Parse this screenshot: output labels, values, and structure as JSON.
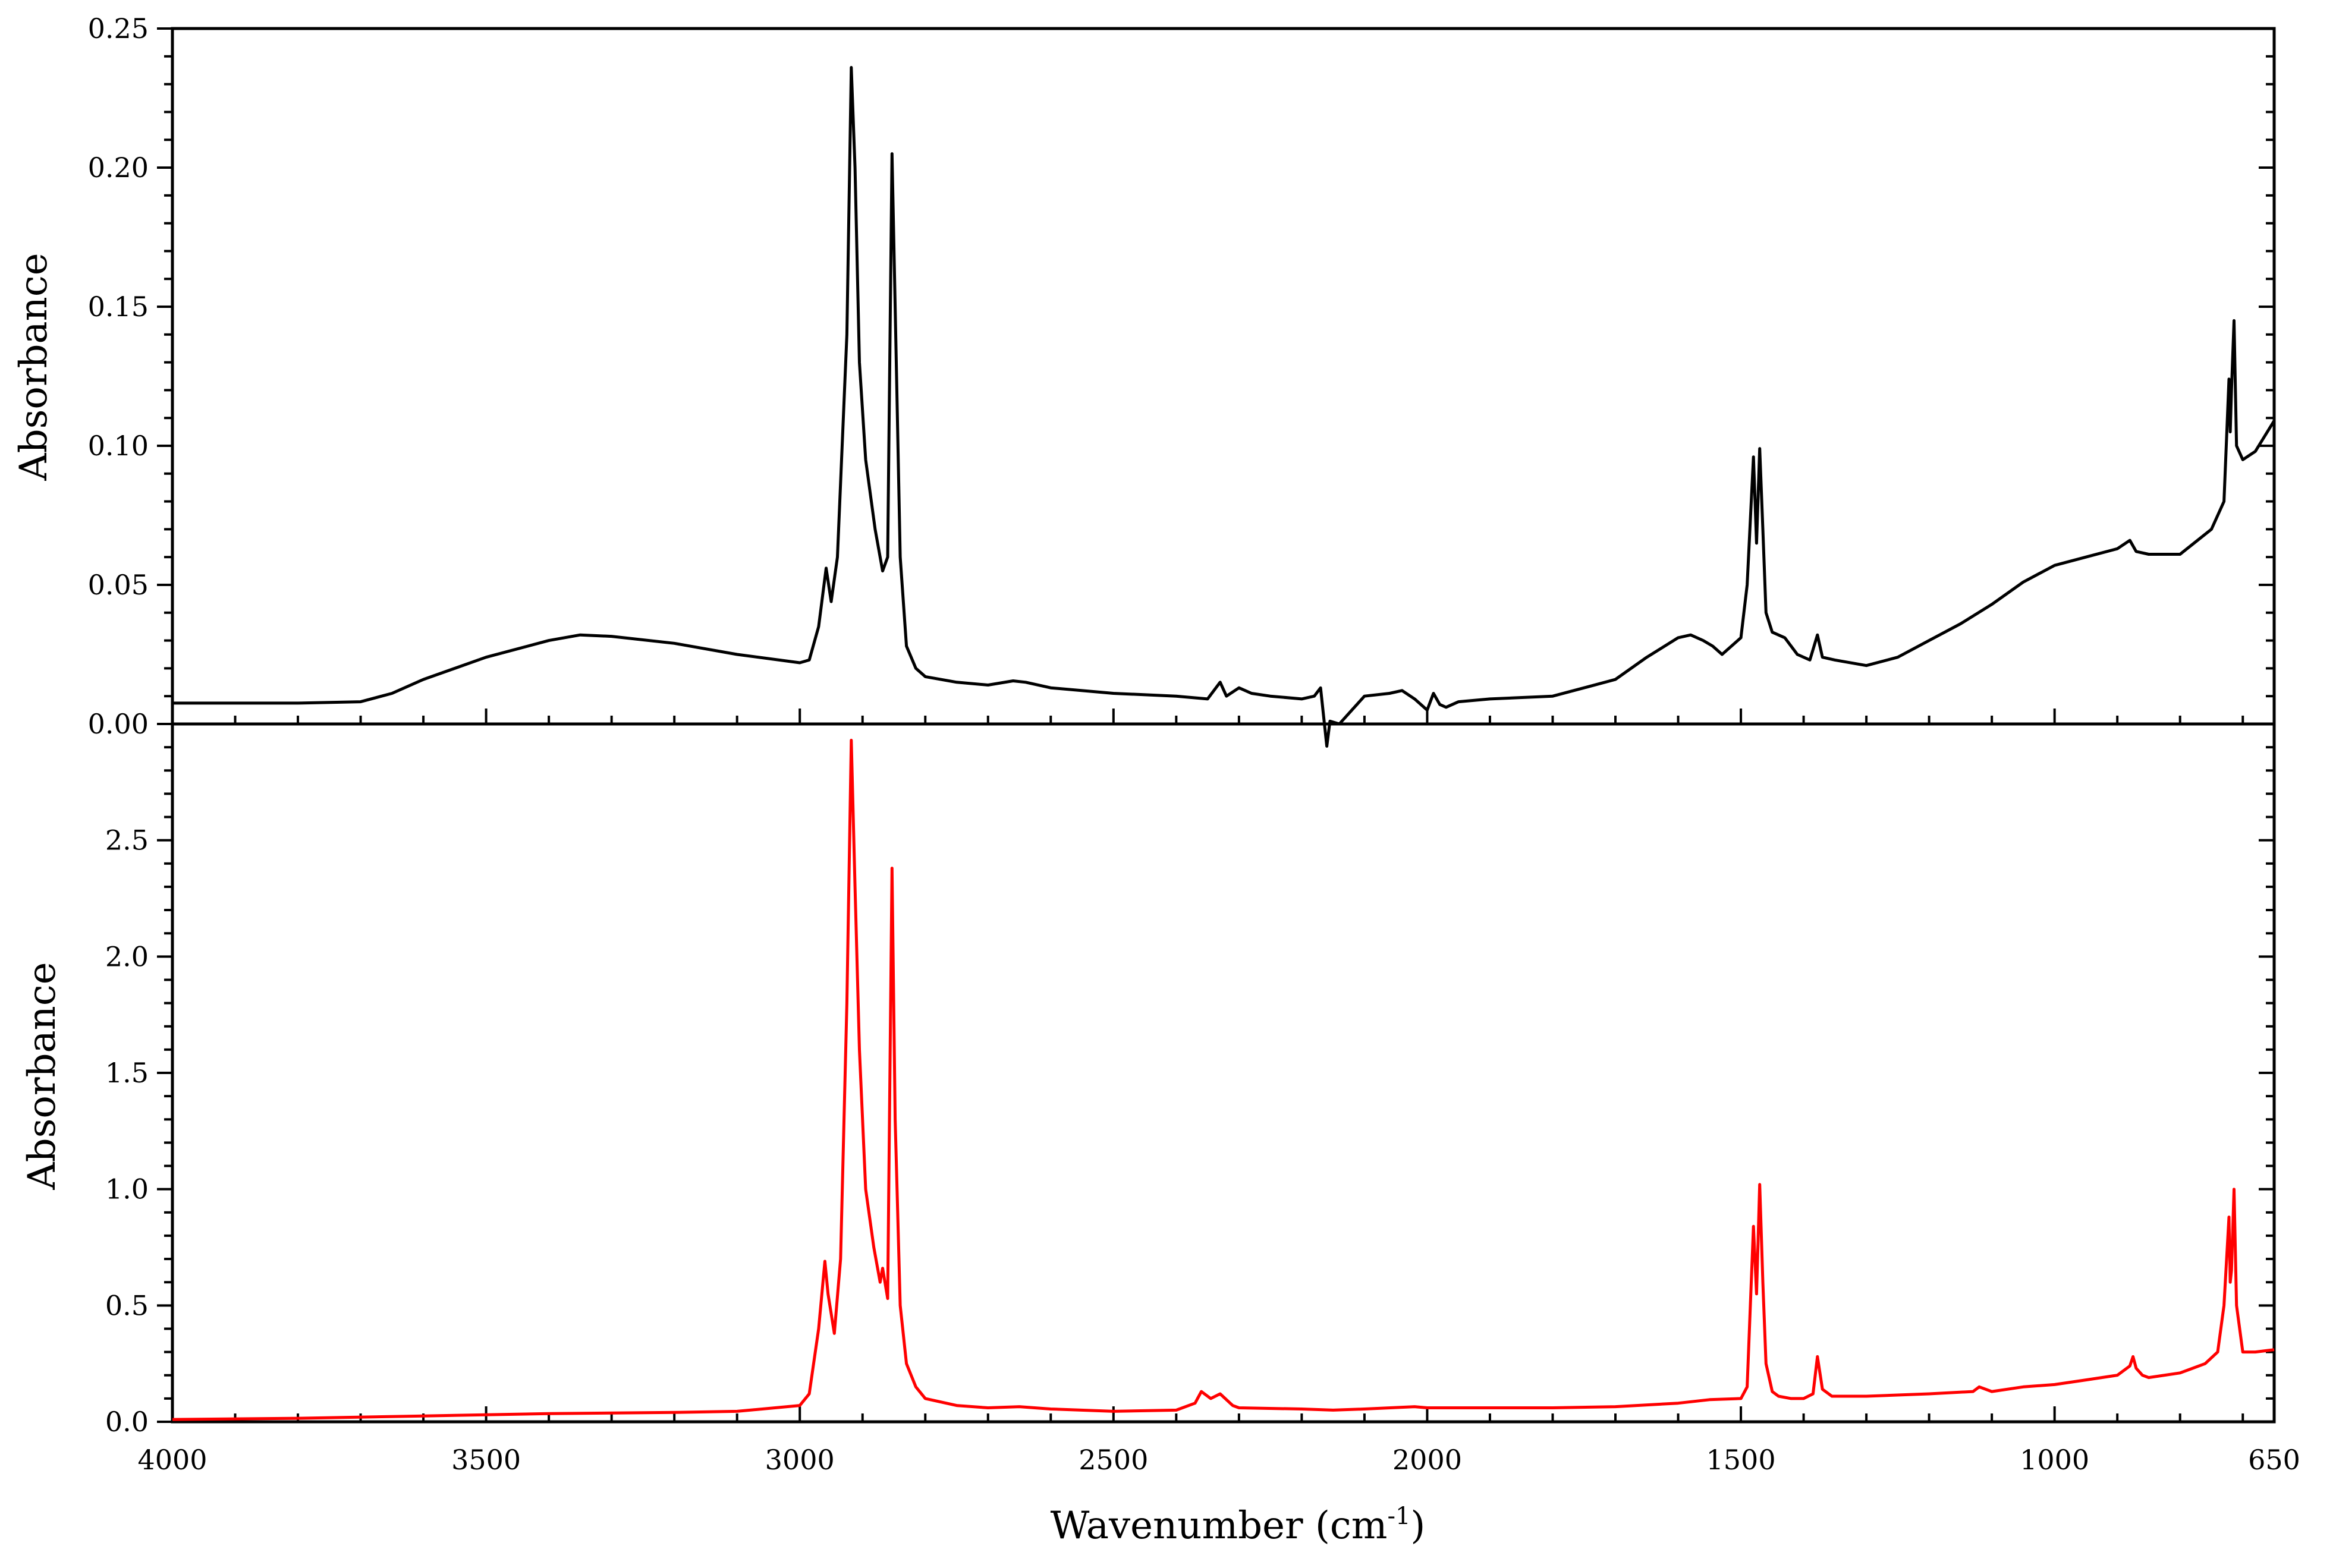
{
  "chart_data": [
    {
      "type": "line",
      "panel": "top",
      "ylabel": "Absorbance",
      "xlabel": "",
      "xlim": [
        4000,
        650
      ],
      "x_reversed": true,
      "ylim": [
        0.0,
        0.25
      ],
      "yticks": [
        "0.00",
        "0.05",
        "0.10",
        "0.15",
        "0.20",
        "0.25"
      ],
      "grid": false,
      "legend": "none",
      "series": [
        {
          "color": "#000000",
          "x": [
            4000,
            3900,
            3800,
            3700,
            3650,
            3600,
            3500,
            3400,
            3350,
            3300,
            3200,
            3100,
            3000,
            2985,
            2970,
            2958,
            2950,
            2940,
            2925,
            2918,
            2912,
            2905,
            2895,
            2880,
            2868,
            2860,
            2853,
            2848,
            2840,
            2830,
            2815,
            2800,
            2750,
            2700,
            2660,
            2640,
            2600,
            2500,
            2400,
            2350,
            2330,
            2320,
            2300,
            2280,
            2250,
            2200,
            2180,
            2170,
            2160,
            2155,
            2140,
            2120,
            2100,
            2060,
            2040,
            2020,
            2000,
            1990,
            1980,
            1970,
            1950,
            1900,
            1800,
            1750,
            1700,
            1650,
            1600,
            1580,
            1560,
            1545,
            1530,
            1500,
            1490,
            1480,
            1475,
            1470,
            1465,
            1460,
            1450,
            1430,
            1410,
            1390,
            1378,
            1370,
            1350,
            1300,
            1250,
            1200,
            1150,
            1100,
            1050,
            1000,
            950,
            900,
            880,
            870,
            850,
            800,
            750,
            730,
            722,
            720,
            718,
            714,
            710,
            700,
            680,
            650
          ],
          "y": [
            0.0075,
            0.0075,
            0.0075,
            0.008,
            0.011,
            0.016,
            0.024,
            0.03,
            0.032,
            0.0315,
            0.029,
            0.025,
            0.022,
            0.023,
            0.035,
            0.056,
            0.044,
            0.06,
            0.14,
            0.236,
            0.2,
            0.13,
            0.095,
            0.07,
            0.055,
            0.06,
            0.205,
            0.15,
            0.06,
            0.028,
            0.02,
            0.017,
            0.015,
            0.014,
            0.0155,
            0.015,
            0.013,
            0.011,
            0.01,
            0.009,
            0.015,
            0.01,
            0.013,
            0.011,
            0.01,
            0.009,
            0.01,
            0.013,
            -0.008,
            0.001,
            0.0,
            0.005,
            0.01,
            0.011,
            0.012,
            0.009,
            0.005,
            0.011,
            0.007,
            0.006,
            0.008,
            0.009,
            0.01,
            0.013,
            0.016,
            0.024,
            0.031,
            0.032,
            0.03,
            0.028,
            0.025,
            0.031,
            0.05,
            0.096,
            0.065,
            0.099,
            0.07,
            0.04,
            0.033,
            0.031,
            0.025,
            0.023,
            0.032,
            0.024,
            0.023,
            0.021,
            0.024,
            0.03,
            0.036,
            0.043,
            0.051,
            0.057,
            0.06,
            0.063,
            0.066,
            0.062,
            0.061,
            0.061,
            0.07,
            0.08,
            0.124,
            0.105,
            0.12,
            0.145,
            0.1,
            0.095,
            0.098,
            0.109
          ]
        }
      ]
    },
    {
      "type": "line",
      "panel": "bottom",
      "ylabel": "Absorbance",
      "xlabel": "Wavenumber (cm",
      "xlabel_sup": "-1",
      "xlabel_tail": ")",
      "xlim": [
        4000,
        650
      ],
      "x_reversed": true,
      "xticks": [
        "4000",
        "3500",
        "3000",
        "2500",
        "2000",
        "1500",
        "1000",
        "650"
      ],
      "ylim": [
        0.0,
        3.0
      ],
      "yticks": [
        "0.0",
        "0.5",
        "1.0",
        "1.5",
        "2.0",
        "2.5"
      ],
      "grid": false,
      "legend": "none",
      "series": [
        {
          "color": "#ff0000",
          "x": [
            4000,
            3800,
            3600,
            3400,
            3200,
            3100,
            3000,
            2985,
            2970,
            2960,
            2955,
            2945,
            2935,
            2925,
            2918,
            2912,
            2905,
            2895,
            2882,
            2872,
            2868,
            2860,
            2853,
            2848,
            2840,
            2830,
            2815,
            2800,
            2750,
            2700,
            2650,
            2600,
            2500,
            2400,
            2370,
            2360,
            2345,
            2330,
            2310,
            2300,
            2200,
            2150,
            2100,
            2020,
            2000,
            1900,
            1800,
            1700,
            1600,
            1550,
            1500,
            1490,
            1480,
            1475,
            1470,
            1465,
            1460,
            1450,
            1440,
            1420,
            1400,
            1385,
            1378,
            1370,
            1355,
            1300,
            1200,
            1130,
            1120,
            1100,
            1050,
            1000,
            950,
            900,
            880,
            875,
            870,
            860,
            850,
            800,
            760,
            740,
            730,
            722,
            720,
            718,
            714,
            710,
            700,
            680,
            650
          ],
          "y": [
            0.01,
            0.015,
            0.025,
            0.035,
            0.04,
            0.045,
            0.07,
            0.12,
            0.4,
            0.69,
            0.55,
            0.38,
            0.7,
            1.8,
            2.93,
            2.3,
            1.6,
            1.0,
            0.75,
            0.6,
            0.66,
            0.53,
            2.38,
            1.3,
            0.5,
            0.25,
            0.15,
            0.1,
            0.07,
            0.06,
            0.065,
            0.055,
            0.045,
            0.05,
            0.08,
            0.13,
            0.1,
            0.12,
            0.07,
            0.06,
            0.055,
            0.05,
            0.055,
            0.065,
            0.06,
            0.06,
            0.06,
            0.065,
            0.08,
            0.095,
            0.1,
            0.15,
            0.84,
            0.55,
            1.02,
            0.6,
            0.25,
            0.13,
            0.11,
            0.1,
            0.1,
            0.12,
            0.28,
            0.14,
            0.11,
            0.11,
            0.12,
            0.13,
            0.15,
            0.13,
            0.15,
            0.16,
            0.18,
            0.2,
            0.24,
            0.28,
            0.23,
            0.2,
            0.19,
            0.21,
            0.25,
            0.3,
            0.5,
            0.88,
            0.6,
            0.65,
            1.0,
            0.5,
            0.3,
            0.3,
            0.31
          ]
        }
      ]
    }
  ]
}
